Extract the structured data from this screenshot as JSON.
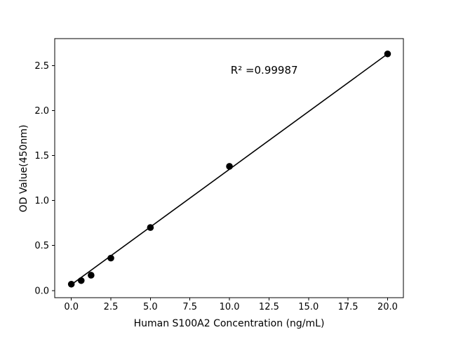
{
  "figure": {
    "background": "#ffffff",
    "foreground": "#000000"
  },
  "chart_data": {
    "type": "scatter",
    "title": "",
    "xlabel": "Human S100A2 Concentration (ng/mL)",
    "ylabel": "OD Value(450nm)",
    "annotation": {
      "text": "R² =0.99987",
      "x": 12.2,
      "y": 2.45
    },
    "r_squared": 0.99987,
    "x_ticks": [
      0.0,
      2.5,
      5.0,
      7.5,
      10.0,
      12.5,
      15.0,
      17.5,
      20.0
    ],
    "y_ticks": [
      0.0,
      0.5,
      1.0,
      1.5,
      2.0,
      2.5
    ],
    "xlim": [
      -1.05,
      21.0
    ],
    "ylim": [
      -0.08,
      2.8
    ],
    "grid": false,
    "legend": null,
    "marker_color": "#000000",
    "line_color": "#000000",
    "points": [
      {
        "x": 0,
        "y": 0.07
      },
      {
        "x": 0.625,
        "y": 0.11
      },
      {
        "x": 1.25,
        "y": 0.17
      },
      {
        "x": 2.5,
        "y": 0.36
      },
      {
        "x": 5,
        "y": 0.7
      },
      {
        "x": 10,
        "y": 1.38
      },
      {
        "x": 20,
        "y": 2.63
      }
    ],
    "fit_line": {
      "x1": 0,
      "y1": 0.065,
      "x2": 20,
      "y2": 2.63
    }
  }
}
